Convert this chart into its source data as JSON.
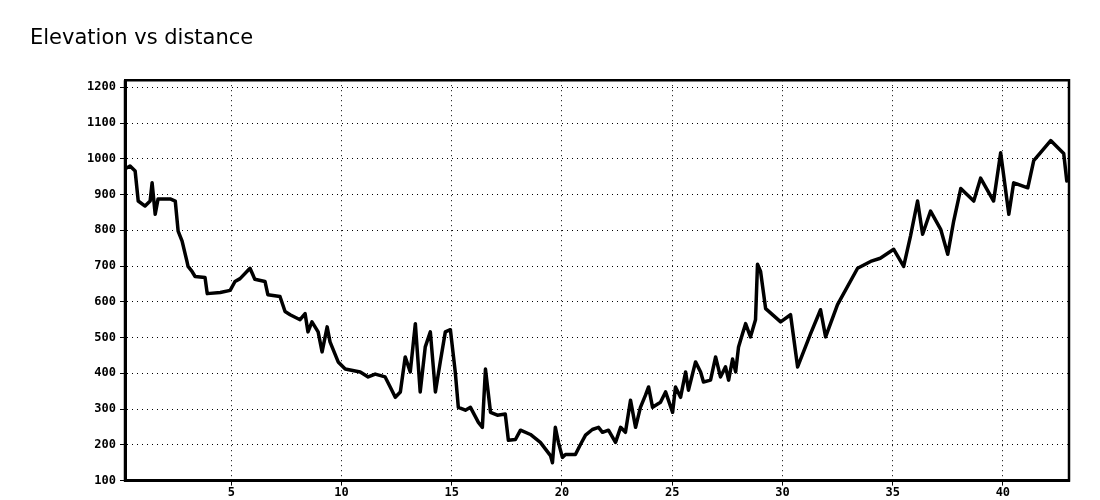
{
  "chart_data": {
    "type": "line",
    "title": "Elevation vs distance",
    "series": [
      {
        "color": "#000000",
        "x": [
          0.19,
          0.41,
          0.64,
          0.78,
          1.09,
          1.32,
          1.41,
          1.55,
          1.68,
          1.87,
          2.23,
          2.46,
          2.59,
          2.77,
          2.99,
          3.04,
          3.22,
          3.36,
          3.81,
          3.91,
          4.5,
          4.95,
          5.17,
          5.4,
          5.85,
          6.07,
          6.53,
          6.66,
          7.21,
          7.44,
          7.67,
          8.12,
          8.35,
          8.48,
          8.66,
          8.94,
          9.12,
          9.35,
          9.48,
          9.85,
          10.17,
          10.85,
          11.21,
          11.53,
          11.98,
          12.21,
          12.44,
          12.67,
          12.89,
          13.12,
          13.35,
          13.57,
          13.8,
          14.03,
          14.26,
          14.48,
          14.71,
          14.94,
          15.16,
          15.3,
          15.62,
          15.85,
          16.21,
          16.39,
          16.53,
          16.76,
          17.07,
          17.43,
          17.57,
          17.89,
          18.12,
          18.57,
          19.02,
          19.48,
          19.57,
          19.7,
          19.84,
          20.02,
          20.16,
          20.61,
          20.84,
          21.07,
          21.38,
          21.66,
          21.84,
          22.11,
          22.43,
          22.66,
          22.88,
          23.11,
          23.34,
          23.56,
          23.79,
          23.93,
          24.11,
          24.47,
          24.7,
          25.02,
          25.15,
          25.38,
          25.61,
          25.74,
          26.06,
          26.29,
          26.42,
          26.74,
          26.97,
          27.19,
          27.42,
          27.56,
          27.74,
          27.88,
          28.01,
          28.19,
          28.33,
          28.55,
          28.78,
          28.87,
          29.01,
          29.24,
          29.92,
          30.37,
          30.69,
          31.28,
          31.73,
          31.96,
          32.5,
          33.41,
          34.0,
          34.44,
          35.05,
          35.5,
          35.81,
          36.13,
          36.36,
          36.72,
          37.18,
          37.5,
          37.77,
          38.09,
          38.68,
          38.99,
          39.58,
          39.9,
          40.27,
          40.49,
          41.13,
          41.4,
          42.17,
          42.76,
          42.9
        ],
        "values": [
          972,
          980,
          966,
          882,
          868,
          882,
          933,
          845,
          888,
          888,
          888,
          882,
          798,
          770,
          713,
          699,
          685,
          671,
          668,
          623,
          626,
          632,
          657,
          665,
          694,
          663,
          657,
          620,
          615,
          573,
          564,
          550,
          567,
          516,
          544,
          516,
          460,
          530,
          488,
          432,
          412,
          404,
          390,
          398,
          390,
          362,
          333,
          348,
          446,
          404,
          539,
          348,
          474,
          516,
          348,
          432,
          516,
          522,
          404,
          305,
          297,
          305,
          263,
          249,
          412,
          291,
          283,
          286,
          213,
          215,
          241,
          229,
          207,
          170,
          150,
          249,
          207,
          165,
          173,
          173,
          201,
          227,
          243,
          249,
          235,
          241,
          207,
          249,
          235,
          325,
          249,
          305,
          339,
          362,
          305,
          319,
          348,
          291,
          362,
          333,
          404,
          353,
          432,
          404,
          376,
          381,
          446,
          390,
          418,
          381,
          440,
          404,
          474,
          511,
          539,
          502,
          550,
          705,
          685,
          581,
          544,
          564,
          418,
          511,
          578,
          502,
          592,
          694,
          713,
          722,
          747,
          699,
          784,
          882,
          789,
          854,
          803,
          733,
          826,
          917,
          882,
          946,
          882,
          1017,
          845,
          933,
          919,
          995,
          1051,
          1015,
          938
        ]
      }
    ],
    "xlim": [
      0.18,
      43
    ],
    "xticks": [
      5,
      10,
      15,
      20,
      25,
      30,
      35,
      40
    ],
    "ylim": [
      100,
      1220
    ],
    "yticks": [
      100,
      200,
      300,
      400,
      500,
      600,
      700,
      800,
      900,
      1000,
      1100,
      1200
    ],
    "grid": true,
    "legend": false,
    "marker": "none",
    "line_style": "solid"
  }
}
